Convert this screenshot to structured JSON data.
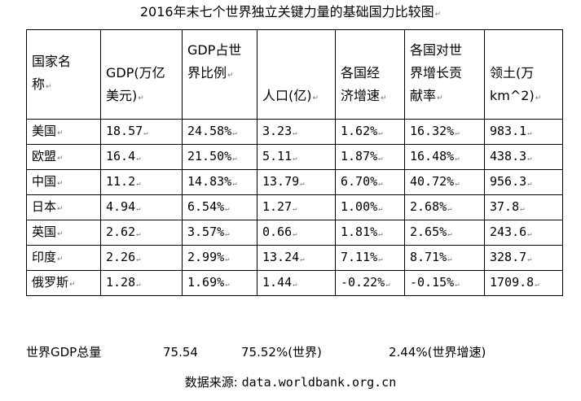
{
  "title": "2016年末七个世界独立关键力量的基础国力比较图",
  "headers": [
    {
      "line1": "国家名",
      "line2": "称"
    },
    {
      "line1": "GDP(万亿",
      "line2": "美元)"
    },
    {
      "line1": "GDP占世",
      "line2": "界比例"
    },
    {
      "line1": "",
      "line2": "人口(亿)"
    },
    {
      "line1": "各国经",
      "line2": "济增速"
    },
    {
      "line1": "各国对世",
      "line2": "界增长贡",
      "line3": "献率"
    },
    {
      "line1": "领土(万",
      "line2": "km^2)"
    }
  ],
  "rows": [
    [
      "美国",
      "18.57",
      "24.58%",
      "3.23",
      "1.62%",
      "16.32%",
      "983.1"
    ],
    [
      "欧盟",
      "16.4",
      "21.50%",
      "5.11",
      "1.87%",
      "16.48%",
      "438.3"
    ],
    [
      "中国",
      "11.2",
      "14.83%",
      "13.79",
      "6.70%",
      "40.72%",
      "956.3"
    ],
    [
      "日本",
      "4.94",
      "6.54%",
      "1.27",
      "1.00%",
      "2.68%",
      "37.8"
    ],
    [
      "英国",
      "2.62",
      "3.57%",
      "0.66",
      "1.81%",
      "2.65%",
      "243.6"
    ],
    [
      "印度",
      "2.26",
      "2.99%",
      "13.24",
      "7.11%",
      "8.71%",
      "328.7"
    ],
    [
      "俄罗斯",
      "1.28",
      "1.69%",
      "1.44",
      "-0.22%",
      "-0.15%",
      "1709.8"
    ]
  ],
  "summary": {
    "label": "世界GDP总量",
    "gdp": "75.54",
    "share": "75.52%(世界)",
    "growth": "2.44%(世界增速)"
  },
  "source": {
    "label": "数据来源:",
    "url": "data.worldbank.org.cn"
  }
}
